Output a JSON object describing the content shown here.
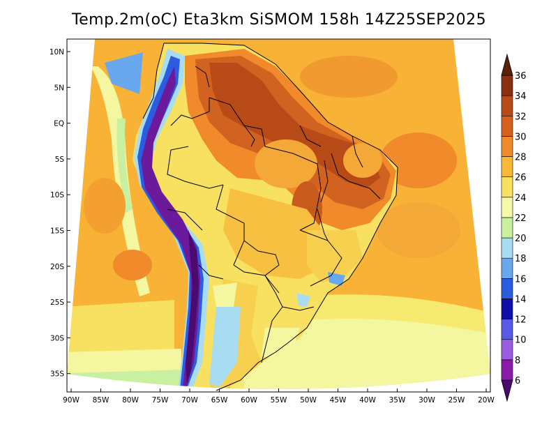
{
  "title": "Temp.2m(oC) Eta3km SiSMOM 158h 14Z25SEP2025",
  "lat_ticks": [
    "10N",
    "5N",
    "EQ",
    "5S",
    "10S",
    "15S",
    "20S",
    "25S",
    "30S",
    "35S"
  ],
  "lon_ticks": [
    "90W",
    "85W",
    "80W",
    "75W",
    "70W",
    "65W",
    "60W",
    "55W",
    "50W",
    "45W",
    "40W",
    "35W",
    "30W",
    "25W",
    "20W"
  ],
  "colorbar": {
    "levels": [
      "6",
      "8",
      "10",
      "12",
      "14",
      "16",
      "18",
      "20",
      "22",
      "24",
      "26",
      "28",
      "30",
      "32",
      "34",
      "36"
    ],
    "colors": [
      "#4b0a6e",
      "#8a1aa8",
      "#9a5ce0",
      "#5a5ae8",
      "#1010a8",
      "#2c5ce0",
      "#6aa8ee",
      "#a8dcf2",
      "#c8f0a0",
      "#f4f8a8",
      "#f8e060",
      "#f8b838",
      "#f08a2a",
      "#d8601e",
      "#b84a18",
      "#8a3010",
      "#5a2008"
    ]
  },
  "colors": {
    "ocean_main": "#f8b236",
    "ocean_cool": "#f6ea70",
    "land_hot": "#d2621f",
    "andes": "#6a1a9a"
  }
}
